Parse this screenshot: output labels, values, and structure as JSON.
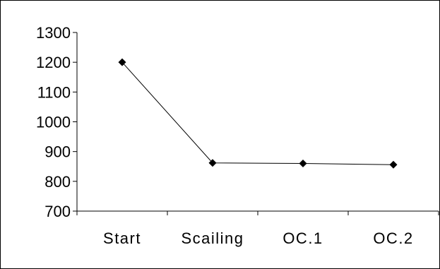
{
  "chart_data": {
    "type": "line",
    "title": "",
    "xlabel": "",
    "ylabel": "",
    "categories": [
      "Start",
      "Scailing",
      "OC.1",
      "OC.2"
    ],
    "series": [
      {
        "values": [
          1200,
          862,
          860,
          856
        ]
      }
    ],
    "ylim": [
      700,
      1300
    ],
    "yticks": [
      "1300",
      "1200",
      "1100",
      "1000",
      "900",
      "800",
      "700"
    ],
    "grid": false,
    "legend": "none",
    "colors": {
      "line": "#000000",
      "marker": "#000000",
      "axis": "#000000",
      "frame": "#000000",
      "background": "#ffffff"
    }
  }
}
